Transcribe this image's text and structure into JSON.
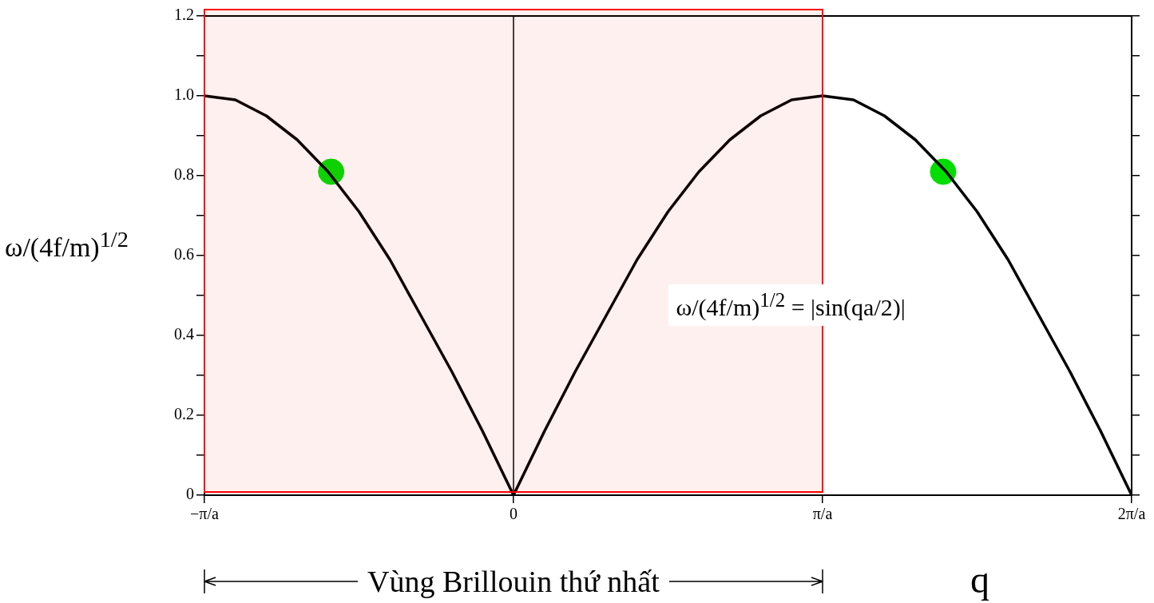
{
  "chart_data": {
    "type": "line",
    "xlabel": "q",
    "ylabel": "ω/(4f/m)$^{1/2}$",
    "annotations": [
      "ω/(4f/m)$^{1/2}$ = |sin(qa/2)|"
    ],
    "xlim": [
      -1,
      2
    ],
    "xticks": [
      {
        "value": -1,
        "label": "−π/a"
      },
      0,
      {
        "value": 1,
        "label": "π/a"
      },
      {
        "value": 2,
        "label": "2π/a"
      }
    ],
    "ylim": [
      0,
      1.2
    ],
    "yticks": [
      0,
      {
        "value": 0.1,
        "label": null
      },
      0.2,
      {
        "value": 0.3,
        "label": null
      },
      0.4,
      {
        "value": 0.5,
        "label": null
      },
      0.6,
      {
        "value": 0.7,
        "label": null
      },
      0.8,
      {
        "value": 0.9,
        "label": null
      },
      {
        "value": 1,
        "label": "1.0"
      },
      {
        "value": 1.1,
        "label": null
      },
      1.2
    ],
    "grid": false,
    "legend": false,
    "series": [
      {
        "color": "#000000",
        "marker": "none",
        "line_style": "solid",
        "x": [
          -1,
          -0.9,
          -0.8,
          -0.7,
          -0.6,
          -0.5,
          -0.4,
          -0.3,
          -0.2,
          -0.1,
          0,
          0.1,
          0.2,
          0.3,
          0.4,
          0.5,
          0.6,
          0.7,
          0.8,
          0.9,
          1,
          1.1,
          1.2,
          1.3,
          1.4,
          1.5,
          1.6,
          1.7,
          1.8,
          1.9,
          2
        ],
        "values": [
          1,
          0.99,
          0.95,
          0.89,
          0.81,
          0.71,
          0.59,
          0.45,
          0.31,
          0.16,
          0,
          0.16,
          0.31,
          0.45,
          0.59,
          0.71,
          0.81,
          0.89,
          0.95,
          0.99,
          1,
          0.99,
          0.95,
          0.89,
          0.81,
          0.71,
          0.59,
          0.45,
          0.31,
          0.16,
          0
        ]
      },
      {
        "type": "scatter",
        "color": "#00dd00",
        "marker": "circle",
        "x": [
          -0.59,
          1.39
        ],
        "values": [
          0.81,
          0.81
        ]
      }
    ],
    "ref_lines": [
      {
        "axis": "x",
        "value": 0,
        "color": "#000000"
      }
    ],
    "bands": [
      {
        "axis": "x",
        "from": -1,
        "to": 1,
        "label": "Vùng Brillouin thứ nhất",
        "color": "#ff0000"
      }
    ]
  }
}
